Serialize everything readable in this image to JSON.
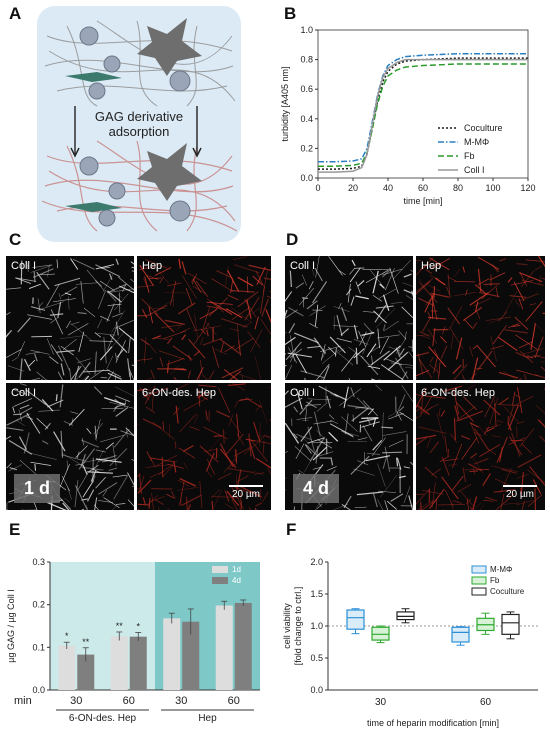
{
  "panels": {
    "A": "A",
    "B": "B",
    "C": "C",
    "D": "D",
    "E": "E",
    "F": "F"
  },
  "panelA": {
    "label_line1": "GAG derivative",
    "label_line2": "adsorption"
  },
  "micrographs": {
    "coll": "Coll I",
    "hep": "Hep",
    "des_hep": "6-ON-des. Hep",
    "time_c": "1 d",
    "time_d": "4 d",
    "scale_bar": "20 µm"
  },
  "colors": {
    "fibre_red": "#c0392b",
    "micro_bg": "#0a0a0a",
    "chart_e_bg1": "#cdeaea",
    "chart_e_bg2": "#7ec8c8",
    "mmphi": "#2a8fd6",
    "fb": "#2eaa2e",
    "coculture": "#222222"
  },
  "chart_data": [
    {
      "id": "B",
      "type": "line",
      "xlabel": "time [min]",
      "ylabel": "turbidity [A405 nm]",
      "xlim": [
        0,
        120
      ],
      "ylim": [
        0,
        1.0
      ],
      "xticks": [
        0,
        20,
        40,
        60,
        80,
        100,
        120
      ],
      "yticks": [
        "0.0",
        "0.2",
        "0.4",
        "0.6",
        "0.8",
        "1.0"
      ],
      "legend_position": "bottom-right",
      "series": [
        {
          "name": "Coculture",
          "style": "dotted",
          "color": "#1a1a1a",
          "x": [
            0,
            10,
            20,
            25,
            28,
            31,
            34,
            37,
            40,
            45,
            50,
            60,
            80,
            100,
            120
          ],
          "y": [
            0.06,
            0.06,
            0.065,
            0.08,
            0.16,
            0.34,
            0.52,
            0.65,
            0.72,
            0.77,
            0.79,
            0.8,
            0.81,
            0.81,
            0.81
          ]
        },
        {
          "name": "M-MΦ",
          "style": "dashdot",
          "color": "#2a7fc0",
          "x": [
            0,
            10,
            20,
            25,
            28,
            31,
            34,
            37,
            40,
            45,
            50,
            60,
            80,
            100,
            120
          ],
          "y": [
            0.11,
            0.11,
            0.115,
            0.13,
            0.2,
            0.38,
            0.56,
            0.69,
            0.76,
            0.8,
            0.82,
            0.83,
            0.84,
            0.84,
            0.84
          ]
        },
        {
          "name": "Fb",
          "style": "dashed",
          "color": "#2a9a2a",
          "x": [
            0,
            10,
            20,
            25,
            28,
            31,
            34,
            37,
            40,
            45,
            50,
            60,
            80,
            100,
            120
          ],
          "y": [
            0.08,
            0.08,
            0.085,
            0.1,
            0.17,
            0.33,
            0.5,
            0.62,
            0.69,
            0.73,
            0.75,
            0.76,
            0.77,
            0.77,
            0.77
          ]
        },
        {
          "name": "Coll I",
          "style": "solid",
          "color": "#999999",
          "x": [
            0,
            10,
            20,
            25,
            28,
            31,
            34,
            37,
            40,
            45,
            50,
            60,
            80,
            100,
            120
          ],
          "y": [
            0.04,
            0.04,
            0.045,
            0.07,
            0.16,
            0.36,
            0.55,
            0.68,
            0.74,
            0.78,
            0.8,
            0.8,
            0.8,
            0.8,
            0.8
          ]
        }
      ]
    },
    {
      "id": "E",
      "type": "bar",
      "ylabel": "µg GAG / µg Coll I",
      "xlabel_prefix": "min",
      "ylim": [
        0,
        0.3
      ],
      "yticks": [
        "0.0",
        "0.1",
        "0.2",
        "0.3"
      ],
      "categories": [
        "30",
        "60",
        "30",
        "60"
      ],
      "groups": [
        "6-ON-des. Hep",
        "Hep"
      ],
      "legend_position": "top-right",
      "series": [
        {
          "name": "1d",
          "color": "#dddddd",
          "values": [
            0.104,
            0.126,
            0.168,
            0.198
          ],
          "errors": [
            0.008,
            0.01,
            0.012,
            0.01
          ]
        },
        {
          "name": "4d",
          "color": "#7f7f7f",
          "values": [
            0.083,
            0.125,
            0.16,
            0.204
          ],
          "errors": [
            0.016,
            0.01,
            0.03,
            0.007
          ]
        }
      ],
      "annotations": [
        {
          "category": 0,
          "series": 0,
          "text": "*"
        },
        {
          "category": 0,
          "series": 1,
          "text": "**"
        },
        {
          "category": 1,
          "series": 0,
          "text": "**"
        },
        {
          "category": 1,
          "series": 1,
          "text": "*"
        }
      ]
    },
    {
      "id": "F",
      "type": "box",
      "ylabel_line1": "cell viability",
      "ylabel_line2": "[fold change to ctrl.]",
      "xlabel": "time of heparin modification [min]",
      "categories": [
        "30",
        "60"
      ],
      "ylim": [
        0,
        2.0
      ],
      "yticks": [
        "0.0",
        "0.5",
        "1.0",
        "1.5",
        "2.0"
      ],
      "reference_line": 1.0,
      "legend_position": "top-right",
      "series": [
        {
          "name": "M-MΦ",
          "color": "#2a8fd6",
          "fill": "#d9ecf8",
          "boxes": [
            {
              "min": 0.88,
              "q1": 0.95,
              "median": 1.13,
              "q3": 1.25,
              "max": 1.27
            },
            {
              "min": 0.7,
              "q1": 0.75,
              "median": 0.9,
              "q3": 0.98,
              "max": 0.99
            }
          ]
        },
        {
          "name": "Fb",
          "color": "#2eaa2e",
          "fill": "#d8f2d8",
          "boxes": [
            {
              "min": 0.74,
              "q1": 0.78,
              "median": 0.87,
              "q3": 0.98,
              "max": 1.0
            },
            {
              "min": 0.87,
              "q1": 0.93,
              "median": 1.02,
              "q3": 1.12,
              "max": 1.2
            }
          ]
        },
        {
          "name": "Coculture",
          "color": "#222222",
          "fill": "#ffffff",
          "boxes": [
            {
              "min": 1.05,
              "q1": 1.1,
              "median": 1.15,
              "q3": 1.22,
              "max": 1.27
            },
            {
              "min": 0.8,
              "q1": 0.87,
              "median": 1.05,
              "q3": 1.18,
              "max": 1.22
            }
          ]
        }
      ]
    }
  ]
}
